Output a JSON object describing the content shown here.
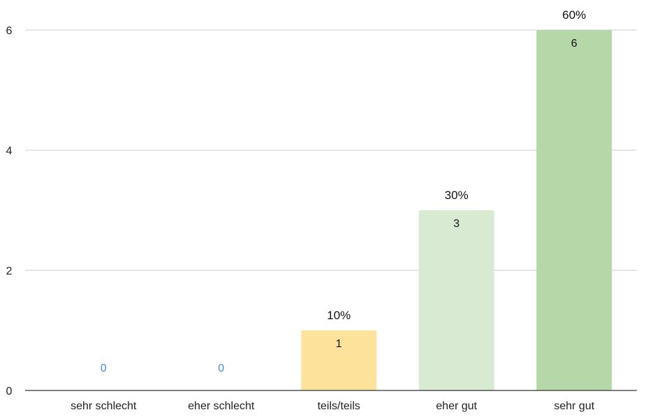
{
  "chart_data": {
    "type": "bar",
    "categories": [
      "sehr schlecht",
      "eher schlecht",
      "teils/teils",
      "eher gut",
      "sehr gut"
    ],
    "values": [
      0,
      0,
      1,
      3,
      6
    ],
    "value_labels": [
      "0",
      "0",
      "1",
      "3",
      "6"
    ],
    "percent_labels": [
      "",
      "",
      "10%",
      "30%",
      "60%"
    ],
    "bar_colors": [
      "#FCE29A",
      "#FCE29A",
      "#FCE29A",
      "#D9EAD3",
      "#B6D7A8"
    ],
    "zero_label_color": "#4A86E8",
    "ylim": [
      0,
      6
    ],
    "yticks": [
      0,
      2,
      4,
      6
    ],
    "ytick_labels": [
      "0",
      "2",
      "4",
      "6"
    ],
    "grid": true,
    "title": "",
    "xlabel": "",
    "ylabel": ""
  }
}
